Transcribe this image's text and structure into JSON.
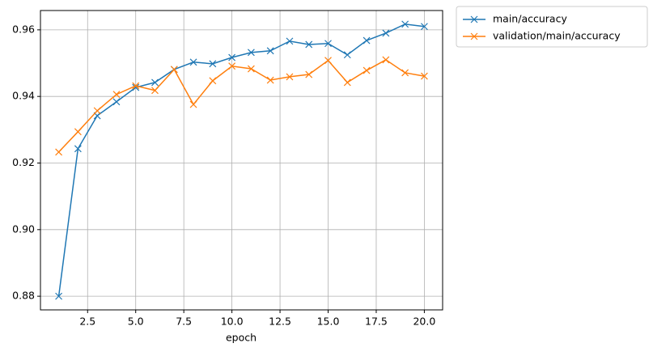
{
  "chart_data": {
    "type": "line",
    "xlabel": "epoch",
    "x": [
      1,
      2,
      3,
      4,
      5,
      6,
      7,
      8,
      9,
      10,
      11,
      12,
      13,
      14,
      15,
      16,
      17,
      18,
      19,
      20
    ],
    "series": [
      {
        "name": "main/accuracy",
        "color": "#1f77b4",
        "values": [
          0.88,
          0.9243,
          0.9342,
          0.9384,
          0.9427,
          0.9442,
          0.9481,
          0.9503,
          0.9498,
          0.9517,
          0.9532,
          0.9537,
          0.9566,
          0.9556,
          0.9559,
          0.9525,
          0.9568,
          0.959,
          0.9617,
          0.961
        ]
      },
      {
        "name": "validation/main/accuracy",
        "color": "#ff7f0e",
        "values": [
          0.9233,
          0.9294,
          0.9357,
          0.9406,
          0.9432,
          0.9418,
          0.9481,
          0.9376,
          0.9447,
          0.9491,
          0.9483,
          0.9449,
          0.9459,
          0.9466,
          0.9508,
          0.9442,
          0.9478,
          0.951,
          0.9471,
          0.9461
        ]
      }
    ],
    "xlim": [
      0.05,
      20.95
    ],
    "ylim": [
      0.8759,
      0.9658
    ],
    "xticks": [
      2.5,
      {
        "value": 5,
        "label": "5.0"
      },
      7.5,
      {
        "value": 10,
        "label": "10.0"
      },
      12.5,
      {
        "value": 15,
        "label": "15.0"
      },
      17.5,
      {
        "value": 20,
        "label": "20.0"
      }
    ],
    "yticks": [
      0.88,
      {
        "value": 0.9,
        "label": "0.90"
      },
      0.92,
      0.94,
      0.96
    ],
    "grid": true,
    "legend": "outside-upper-right",
    "marker": "x"
  }
}
